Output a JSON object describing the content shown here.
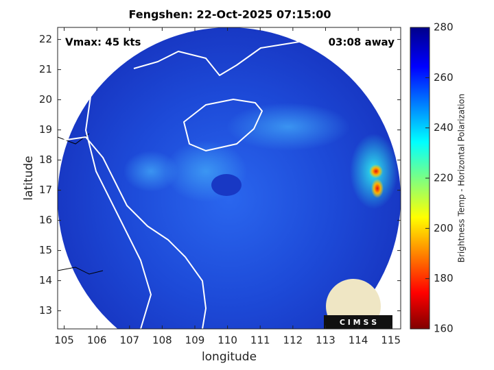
{
  "chart_data": {
    "type": "map",
    "title": "Fengshen: 22-Oct-2025 07:15:00",
    "annotations": [
      "Vmax: 45 kts",
      "03:08 away"
    ],
    "x_label": "longitude",
    "y_label": "latitude",
    "xlim": [
      104.8,
      115.3
    ],
    "ylim": [
      12.4,
      22.4
    ],
    "xticks": [
      105,
      106,
      107,
      108,
      109,
      110,
      111,
      112,
      113,
      114,
      115
    ],
    "yticks": [
      13,
      14,
      15,
      16,
      17,
      18,
      19,
      20,
      21,
      22
    ],
    "colorbar": {
      "label": "Brightness Temp - Horizontal Polarization",
      "lim": [
        160,
        280
      ],
      "ticks": [
        160,
        180,
        200,
        220,
        240,
        260,
        280
      ],
      "colormap": "jet"
    },
    "logo_text": "C I M S S"
  }
}
